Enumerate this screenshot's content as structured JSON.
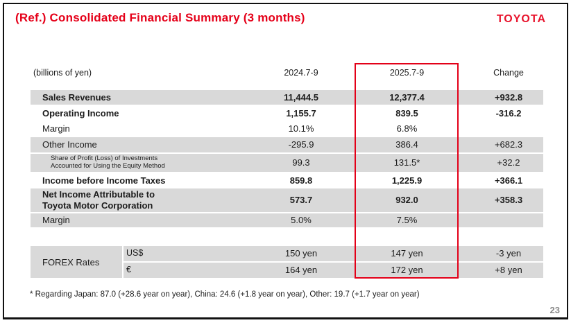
{
  "title": "(Ref.) Consolidated Financial Summary (3 months)",
  "logo": "TOYOTA",
  "colors": {
    "accent_red": "#e50019",
    "highlight_border": "#e30018",
    "row_gray": "#d9d9d9",
    "page_number_gray": "#8a8a8a"
  },
  "table": {
    "unit_label": "(billions of yen)",
    "col_headers": [
      "2024.7-9",
      "2025.7-9",
      "Change"
    ],
    "rows": [
      {
        "label": "Sales Revenues",
        "y2024": "11,444.5",
        "y2025": "12,377.4",
        "change": "+932.8"
      },
      {
        "label": "Operating Income",
        "y2024": "1,155.7",
        "y2025": "839.5",
        "change": "-316.2"
      },
      {
        "label": "Margin",
        "y2024": "10.1%",
        "y2025": "6.8%",
        "change": ""
      },
      {
        "label": "Other Income",
        "y2024": "-295.9",
        "y2025": "386.4",
        "change": "+682.3"
      },
      {
        "label": "Share of Profit (Loss) of Investments\nAccounted for Using the Equity Method",
        "y2024": "99.3",
        "y2025": "131.5*",
        "change": "+32.2"
      },
      {
        "label": "Income before Income Taxes",
        "y2024": "859.8",
        "y2025": "1,225.9",
        "change": "+366.1"
      },
      {
        "label": "Net Income Attributable to\nToyota Motor Corporation",
        "y2024": "573.7",
        "y2025": "932.0",
        "change": "+358.3"
      },
      {
        "label": "Margin",
        "y2024": "5.0%",
        "y2025": "7.5%",
        "change": ""
      }
    ],
    "forex": {
      "label": "FOREX Rates",
      "rows": [
        {
          "currency": "US$",
          "y2024": "150 yen",
          "y2025": "147 yen",
          "change": "-3 yen"
        },
        {
          "currency": "€",
          "y2024": "164 yen",
          "y2025": "172 yen",
          "change": "+8 yen"
        }
      ]
    }
  },
  "footnote": "* Regarding Japan: 87.0 (+28.6 year on year), China: 24.6 (+1.8 year on year), Other: 19.7 (+1.7 year on year)",
  "page_number": "23"
}
